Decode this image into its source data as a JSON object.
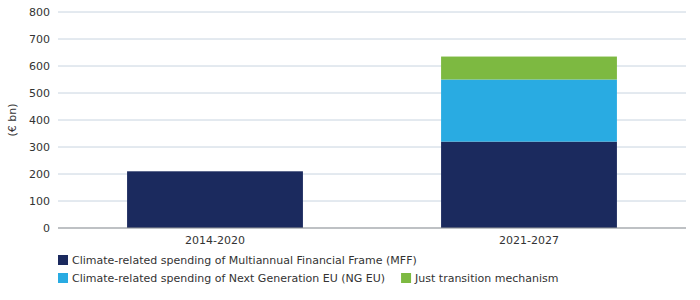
{
  "chart_data": {
    "type": "bar",
    "stacked": true,
    "categories": [
      "2014-2020",
      "2021-2027"
    ],
    "series": [
      {
        "name": "Climate-related spending of Multiannual Financial Frame (MFF)",
        "color": "#1b2a5e",
        "values": [
          210,
          320
        ]
      },
      {
        "name": "Climate-related spending of Next Generation EU (NG EU)",
        "color": "#29abe2",
        "values": [
          0,
          230
        ]
      },
      {
        "name": "Just transition mechanism",
        "color": "#7db941",
        "values": [
          0,
          85
        ]
      }
    ],
    "ylabel": "(€ bn)",
    "ylim": [
      0,
      800
    ],
    "yticks": [
      0,
      100,
      200,
      300,
      400,
      500,
      600,
      700,
      800
    ],
    "grid": true,
    "legend": "bottom"
  }
}
